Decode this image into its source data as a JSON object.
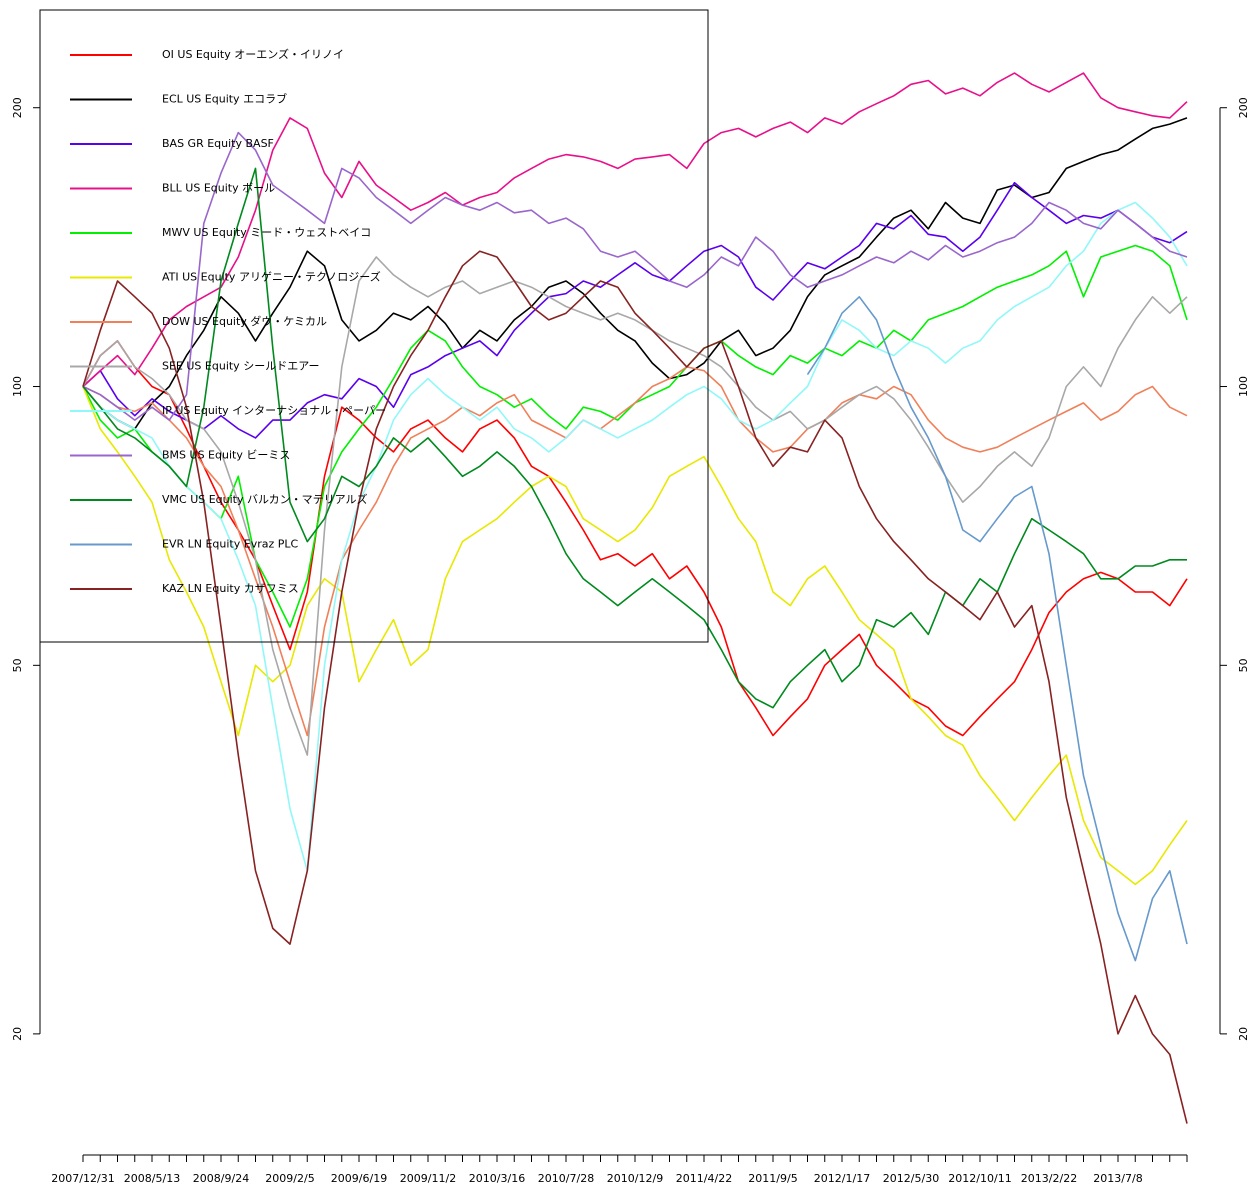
{
  "chart_data": {
    "type": "line",
    "log_scale": true,
    "legend": "topleft",
    "categories": [
      "2007/12/31",
      null,
      null,
      null,
      "2008/5/13",
      null,
      null,
      null,
      "2008/9/24",
      null,
      null,
      null,
      "2009/2/5",
      null,
      null,
      null,
      "2009/6/19",
      null,
      null,
      null,
      "2009/11/2",
      null,
      null,
      null,
      "2010/3/16",
      null,
      null,
      null,
      "2010/7/28",
      null,
      null,
      null,
      "2010/12/9",
      null,
      null,
      null,
      "2011/4/22",
      null,
      null,
      null,
      "2011/9/5",
      null,
      null,
      null,
      "2012/1/17",
      null,
      null,
      null,
      "2012/5/30",
      null,
      null,
      null,
      "2012/10/11",
      null,
      null,
      null,
      "2013/2/22",
      null,
      null,
      null,
      "2013/7/8",
      null,
      null,
      null,
      null
    ],
    "ylim": [
      14.8,
      255
    ],
    "yticks": [
      20,
      50,
      100,
      200
    ],
    "series": [
      {
        "name": "OI US Equity オーエンズ・イリノイ",
        "color": "#ff0000",
        "values": [
          100,
          108,
          112,
          105,
          100,
          98,
          90,
          82,
          75,
          70,
          65,
          58,
          52,
          60,
          80,
          95,
          92,
          88,
          85,
          90,
          92,
          88,
          85,
          90,
          92,
          88,
          82,
          80,
          75,
          70,
          65,
          66,
          64,
          66,
          62,
          64,
          60,
          55,
          48,
          45,
          42,
          44,
          46,
          50,
          52,
          54,
          50,
          48,
          46,
          45,
          43,
          42,
          44,
          46,
          48,
          52,
          57,
          60,
          62,
          63,
          62,
          60,
          60,
          58,
          62
        ]
      },
      {
        "name": "ECL US Equity エコラブ",
        "color": "#000000",
        "values": [
          100,
          95,
          92,
          90,
          96,
          100,
          108,
          115,
          125,
          120,
          112,
          120,
          128,
          140,
          135,
          118,
          112,
          115,
          120,
          118,
          122,
          117,
          110,
          115,
          112,
          118,
          122,
          128,
          130,
          126,
          120,
          115,
          112,
          106,
          102,
          103,
          106,
          112,
          115,
          108,
          110,
          115,
          125,
          132,
          135,
          138,
          145,
          152,
          155,
          148,
          158,
          152,
          150,
          163,
          165,
          160,
          162,
          172,
          175,
          178,
          180,
          185,
          190,
          192,
          195
        ]
      },
      {
        "name": "BAS GR Equity BASF",
        "color": "#5a00f0",
        "values": [
          100,
          104,
          97,
          93,
          97,
          94,
          92,
          90,
          93,
          90,
          88,
          92,
          92,
          96,
          98,
          97,
          102,
          100,
          95,
          103,
          105,
          108,
          110,
          112,
          108,
          115,
          120,
          125,
          126,
          130,
          128,
          132,
          136,
          132,
          130,
          135,
          140,
          142,
          138,
          128,
          124,
          130,
          136,
          134,
          138,
          142,
          150,
          148,
          153,
          146,
          145,
          140,
          145,
          155,
          166,
          160,
          155,
          150,
          153,
          152,
          155,
          150,
          145,
          143,
          147
        ]
      },
      {
        "name": "BLL US Equity ボール",
        "color": "#e8108a",
        "values": [
          100,
          104,
          108,
          103,
          110,
          118,
          122,
          125,
          128,
          138,
          155,
          180,
          195,
          190,
          170,
          160,
          175,
          165,
          160,
          155,
          158,
          162,
          157,
          160,
          162,
          168,
          172,
          176,
          178,
          177,
          175,
          172,
          176,
          177,
          178,
          172,
          183,
          188,
          190,
          186,
          190,
          193,
          188,
          195,
          192,
          198,
          202,
          206,
          212,
          214,
          207,
          210,
          206,
          213,
          218,
          212,
          208,
          213,
          218,
          205,
          200,
          198,
          196,
          195,
          203
        ]
      },
      {
        "name": "MWV US Equity ミード・ウェストベイコ",
        "color": "#00f000",
        "values": [
          100,
          92,
          88,
          90,
          85,
          82,
          78,
          75,
          72,
          80,
          65,
          60,
          55,
          62,
          78,
          85,
          90,
          95,
          102,
          110,
          115,
          112,
          105,
          100,
          98,
          95,
          97,
          93,
          90,
          95,
          94,
          92,
          96,
          98,
          100,
          105,
          110,
          112,
          108,
          105,
          103,
          108,
          106,
          110,
          108,
          112,
          110,
          115,
          112,
          118,
          120,
          122,
          125,
          128,
          130,
          132,
          135,
          140,
          125,
          138,
          140,
          142,
          140,
          135,
          118
        ]
      },
      {
        "name": "ATI US Equity アリゲニー・テクノロジーズ",
        "color": "#e8e800",
        "values": [
          100,
          90,
          85,
          80,
          75,
          65,
          60,
          55,
          48,
          42,
          50,
          48,
          50,
          58,
          62,
          60,
          48,
          52,
          56,
          50,
          52,
          62,
          68,
          70,
          72,
          75,
          78,
          80,
          78,
          72,
          70,
          68,
          70,
          74,
          80,
          82,
          84,
          78,
          72,
          68,
          60,
          58,
          62,
          64,
          60,
          56,
          54,
          52,
          46,
          44,
          42,
          41,
          38,
          36,
          34,
          36,
          38,
          40,
          34,
          31,
          30,
          29,
          30,
          32,
          34
        ]
      },
      {
        "name": "DOW US Equity ダウ・ケミカル",
        "color": "#f0805a",
        "values": [
          100,
          98,
          95,
          94,
          96,
          92,
          88,
          82,
          78,
          70,
          62,
          55,
          48,
          42,
          55,
          65,
          70,
          75,
          82,
          88,
          90,
          92,
          95,
          93,
          96,
          98,
          92,
          90,
          88,
          92,
          90,
          93,
          96,
          100,
          102,
          105,
          104,
          100,
          92,
          88,
          85,
          86,
          90,
          92,
          96,
          98,
          97,
          100,
          98,
          92,
          88,
          86,
          85,
          86,
          88,
          90,
          92,
          94,
          96,
          92,
          94,
          98,
          100,
          95,
          93
        ]
      },
      {
        "name": "SEE US Equity シールドエアー",
        "color": "#a8a8a8",
        "values": [
          100,
          108,
          112,
          105,
          102,
          98,
          92,
          90,
          85,
          75,
          65,
          52,
          45,
          40,
          70,
          105,
          130,
          138,
          132,
          128,
          125,
          128,
          130,
          126,
          128,
          130,
          128,
          125,
          122,
          120,
          118,
          120,
          118,
          115,
          112,
          110,
          108,
          105,
          100,
          95,
          92,
          94,
          90,
          92,
          95,
          98,
          100,
          97,
          92,
          86,
          80,
          75,
          78,
          82,
          85,
          82,
          88,
          100,
          105,
          100,
          110,
          118,
          125,
          120,
          125
        ]
      },
      {
        "name": "IP US Equity インターナショナル・ペーパー",
        "color": "#90f8f8",
        "values": [
          100,
          95,
          92,
          90,
          88,
          82,
          78,
          75,
          72,
          65,
          58,
          45,
          35,
          30,
          50,
          65,
          75,
          82,
          92,
          98,
          102,
          98,
          95,
          92,
          95,
          90,
          88,
          85,
          88,
          92,
          90,
          88,
          90,
          92,
          95,
          98,
          100,
          97,
          92,
          90,
          92,
          96,
          100,
          110,
          118,
          115,
          110,
          108,
          112,
          110,
          106,
          110,
          112,
          118,
          122,
          125,
          128,
          135,
          140,
          150,
          155,
          158,
          152,
          145,
          135
        ]
      },
      {
        "name": "BMS US Equity ビーミス",
        "color": "#9966cc",
        "values": [
          100,
          98,
          95,
          92,
          95,
          92,
          98,
          150,
          170,
          188,
          180,
          165,
          160,
          155,
          150,
          172,
          168,
          160,
          155,
          150,
          155,
          160,
          157,
          155,
          158,
          154,
          155,
          150,
          152,
          148,
          140,
          138,
          140,
          135,
          130,
          128,
          132,
          138,
          135,
          145,
          140,
          132,
          128,
          130,
          132,
          135,
          138,
          136,
          140,
          137,
          142,
          138,
          140,
          143,
          145,
          150,
          158,
          155,
          150,
          148,
          155,
          150,
          145,
          140,
          138
        ]
      },
      {
        "name": "VMC US Equity バルカン・マテリアルズ",
        "color": "#008a1e",
        "values": [
          100,
          95,
          90,
          88,
          85,
          82,
          78,
          95,
          130,
          150,
          172,
          110,
          75,
          68,
          72,
          80,
          78,
          82,
          88,
          85,
          88,
          84,
          80,
          82,
          85,
          82,
          78,
          72,
          66,
          62,
          60,
          58,
          60,
          62,
          60,
          58,
          56,
          52,
          48,
          46,
          45,
          48,
          50,
          52,
          48,
          50,
          56,
          55,
          57,
          54,
          60,
          58,
          62,
          60,
          66,
          72,
          70,
          68,
          66,
          62,
          62,
          64,
          64,
          65,
          65
        ]
      },
      {
        "name": "EVR LN Equity Evraz PLC",
        "color": "#6699cc",
        "values": [
          null,
          null,
          null,
          null,
          null,
          null,
          null,
          null,
          null,
          null,
          null,
          null,
          null,
          null,
          null,
          null,
          null,
          null,
          null,
          null,
          null,
          null,
          null,
          null,
          null,
          null,
          null,
          null,
          null,
          null,
          null,
          null,
          null,
          null,
          null,
          null,
          null,
          null,
          null,
          null,
          null,
          null,
          103,
          110,
          120,
          125,
          118,
          105,
          95,
          88,
          80,
          70,
          68,
          72,
          76,
          78,
          66,
          50,
          38,
          32,
          27,
          24,
          28,
          30,
          25
        ]
      },
      {
        "name": "KAZ LN Equity カザフミス",
        "color": "#882222",
        "values": [
          100,
          115,
          130,
          125,
          120,
          110,
          95,
          75,
          55,
          40,
          30,
          26,
          25,
          30,
          45,
          60,
          75,
          90,
          100,
          108,
          115,
          125,
          135,
          140,
          138,
          130,
          122,
          118,
          120,
          125,
          130,
          128,
          120,
          115,
          110,
          105,
          110,
          112,
          100,
          88,
          82,
          86,
          85,
          92,
          88,
          78,
          72,
          68,
          65,
          62,
          60,
          58,
          56,
          60,
          55,
          58,
          48,
          36,
          30,
          25,
          20,
          22,
          20,
          19,
          16
        ]
      }
    ]
  }
}
